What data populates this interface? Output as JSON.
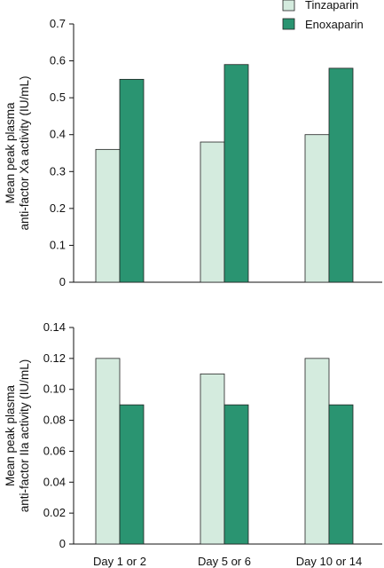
{
  "legend": {
    "placement": "top-right",
    "items": [
      {
        "label": "Tinzaparin",
        "color": "#d4ebde"
      },
      {
        "label": "Enoxaparin",
        "color": "#2a9471"
      }
    ]
  },
  "chart_data": [
    {
      "type": "bar",
      "categories": [
        "Day 1 or 2",
        "Day 5 or 6",
        "Day 10 or 14"
      ],
      "series": [
        {
          "name": "Tinzaparin",
          "values": [
            0.36,
            0.38,
            0.4
          ],
          "color": "#d4ebde"
        },
        {
          "name": "Enoxaparin",
          "values": [
            0.55,
            0.59,
            0.58
          ],
          "color": "#2a9471"
        }
      ],
      "ylabel_lines": [
        "Mean peak plasma",
        "anti-factor Xa activity (IU/mL)"
      ],
      "ylim": [
        0,
        0.7
      ],
      "yticks": [
        0,
        0.1,
        0.2,
        0.3,
        0.4,
        0.5,
        0.6,
        0.7
      ],
      "ytick_labels": [
        "0",
        "0.1",
        "0.2",
        "0.3",
        "0.4",
        "0.5",
        "0.6",
        "0.7"
      ],
      "show_xtick_labels": false,
      "grid": false
    },
    {
      "type": "bar",
      "categories": [
        "Day 1 or 2",
        "Day 5 or 6",
        "Day 10 or 14"
      ],
      "series": [
        {
          "name": "Tinzaparin",
          "values": [
            0.12,
            0.11,
            0.12
          ],
          "color": "#d4ebde"
        },
        {
          "name": "Enoxaparin",
          "values": [
            0.09,
            0.09,
            0.09
          ],
          "color": "#2a9471"
        }
      ],
      "ylabel_lines": [
        "Mean peak plasma",
        "anti-factor IIa activity (IU/mL)"
      ],
      "ylim": [
        0,
        0.14
      ],
      "yticks": [
        0,
        0.02,
        0.04,
        0.06,
        0.08,
        0.1,
        0.12,
        0.14
      ],
      "ytick_labels": [
        "0",
        "0.02",
        "0.04",
        "0.06",
        "0.08",
        "0.10",
        "0.12",
        "0.14"
      ],
      "show_xtick_labels": true,
      "grid": false
    }
  ]
}
